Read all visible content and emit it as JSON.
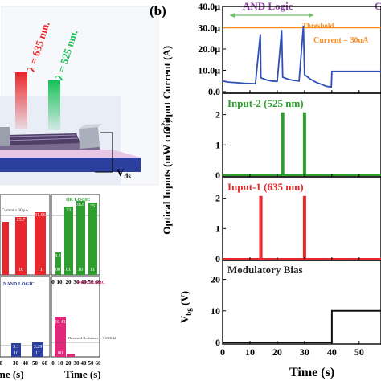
{
  "panel_b": {
    "label": "(b)",
    "top_left_heading": "AND Logic",
    "top_right_heading": "C",
    "threshold_label": "Threshold",
    "current_label": "Current = 30uA",
    "xlabel": "Time (s)",
    "shared_ylabel": "Optical Inputs (mW cm",
    "shared_ylabel_sup": "-2",
    "shared_ylabel_end": ")"
  },
  "panel_a": {
    "lambda1": "λ = 635 nm.",
    "lambda2": "λ = 525 nm.",
    "vds": "V",
    "vds_sub": "ds"
  },
  "mini": {
    "xlabel_left": "me (s)",
    "xlabel_right": "Time (s)",
    "or_title": "OR LOGIC",
    "nand_title": "NAND LOGIC",
    "nor_title": "NOR LOGIC",
    "and_threshold": "Current = 30 μA",
    "nor_threshold": "Threshold Resistance = 3.33 K Ω",
    "and_bars": [
      {
        "top": "25.7",
        "bot": "10"
      },
      {
        "top": "28.7",
        "bot": "10"
      },
      {
        "top": "31.96",
        "bot": "11"
      }
    ],
    "or_bars": [
      {
        "top": "8.4",
        "bot": "00"
      },
      {
        "top": "33",
        "bot": "01"
      },
      {
        "top": "36.8",
        "bot": "10"
      },
      {
        "top": "35",
        "bot": "11"
      }
    ],
    "nand_bars": [
      {
        "top": "3.1",
        "bot": "10"
      },
      {
        "top": "3.29",
        "bot": "11"
      }
    ],
    "nor_bars": [
      {
        "top": "10.41",
        "bot": "00"
      },
      {
        "top": "",
        "bot": "01"
      }
    ],
    "x_ticks": [
      "10",
      "20",
      "30",
      "40",
      "50",
      "60"
    ],
    "or_x_ticks": [
      "0",
      "10",
      "20",
      "30",
      "40",
      "50",
      "60"
    ],
    "nor_x_ticks": [
      "0",
      "10",
      "20",
      "30",
      "40",
      "50",
      "60"
    ]
  },
  "chart_data": [
    {
      "type": "line",
      "title": "Output Current",
      "ylabel": "Output Current (A)",
      "xlim": [
        0,
        58
      ],
      "ylim": [
        0,
        40
      ],
      "y_ticks": [
        "0.0",
        "10.0μ",
        "20.0μ",
        "30.0μ",
        "40.0μ"
      ],
      "threshold": 30,
      "color": "#2f4fb5",
      "threshold_color": "#ff8c1a",
      "x": [
        0,
        2,
        4,
        6,
        8,
        10,
        12,
        13.8,
        14,
        16,
        18,
        20,
        21.6,
        22,
        24,
        26,
        28,
        29.6,
        30,
        32,
        34,
        36,
        38,
        39.8,
        40,
        58
      ],
      "y": [
        5,
        4.5,
        4.3,
        4.1,
        3.9,
        3.8,
        3.7,
        27,
        6.5,
        5.5,
        5,
        4.8,
        29,
        6.8,
        5.8,
        5.3,
        5,
        31,
        8,
        6,
        4.5,
        3.5,
        2.5,
        2.2,
        9.5,
        9.5
      ]
    },
    {
      "type": "line",
      "title": "Input-2 (525 nm)",
      "ylim": [
        0,
        2.6
      ],
      "y_ticks": [
        "0",
        "1",
        "2"
      ],
      "color": "#2e9e2e",
      "x": [
        0,
        21.7,
        21.7,
        22.3,
        22.3,
        29.7,
        29.7,
        30.3,
        30.3,
        58
      ],
      "y": [
        0,
        0,
        2.05,
        2.05,
        0,
        0,
        2.05,
        2.05,
        0,
        0
      ]
    },
    {
      "type": "line",
      "title": "Input-1 (635 nm)",
      "ylim": [
        0,
        2.6
      ],
      "y_ticks": [
        "0",
        "1",
        "2"
      ],
      "color": "#e8262b",
      "x": [
        0,
        13.7,
        13.7,
        14.3,
        14.3,
        29.7,
        29.7,
        30.3,
        30.3,
        58
      ],
      "y": [
        0,
        0,
        2.05,
        2.05,
        0,
        0,
        2.05,
        2.05,
        0,
        0
      ]
    },
    {
      "type": "line",
      "title": "Modulatory Bias",
      "ylabel": "V",
      "ylabel_sub": "bg",
      "ylabel_end": " (V)",
      "xlabel": "Time (s)",
      "xlim": [
        0,
        58
      ],
      "ylim": [
        0,
        25
      ],
      "y_ticks": [
        "0",
        "10",
        "20"
      ],
      "x_ticks": [
        "0",
        "10",
        "20",
        "30",
        "40",
        "50"
      ],
      "color": "#111111",
      "x": [
        0,
        40,
        40,
        58
      ],
      "y": [
        0,
        0,
        10,
        10
      ]
    }
  ]
}
